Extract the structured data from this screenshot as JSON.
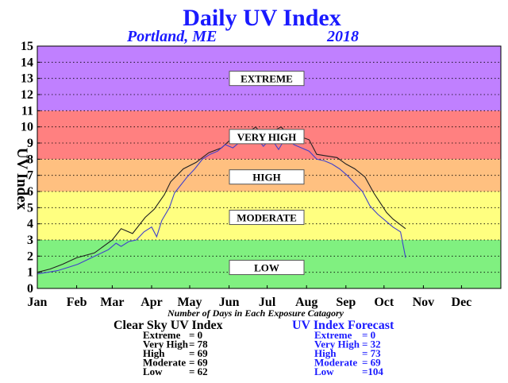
{
  "chart_data": {
    "type": "line",
    "title": "Daily UV Index",
    "subtitle_location": "Portland, ME",
    "subtitle_year": "2018",
    "ylabel": "UV Index",
    "ylim": [
      0,
      15
    ],
    "yticks": [
      "0",
      "1",
      "2",
      "3",
      "4",
      "5",
      "6",
      "7",
      "8",
      "9",
      "10",
      "11",
      "12",
      "13",
      "14",
      "15"
    ],
    "xlim": [
      0,
      365
    ],
    "month_ticks": [
      "Jan",
      "Feb",
      "Mar",
      "Apr",
      "May",
      "Jun",
      "Jul",
      "Aug",
      "Sep",
      "Oct",
      "Nov",
      "Dec"
    ],
    "month_starts": [
      0,
      31,
      59,
      90,
      120,
      151,
      181,
      212,
      243,
      273,
      304,
      334
    ],
    "grid": true,
    "bands": [
      {
        "name": "LOW",
        "from": 0,
        "to": 3,
        "color": "#80f080"
      },
      {
        "name": "MODERATE",
        "from": 3,
        "to": 6,
        "color": "#ffff80"
      },
      {
        "name": "HIGH",
        "from": 6,
        "to": 8,
        "color": "#ffc080"
      },
      {
        "name": "VERY HIGH",
        "from": 8,
        "to": 11,
        "color": "#ff8080"
      },
      {
        "name": "EXTREME",
        "from": 11,
        "to": 15,
        "color": "#c080ff"
      }
    ],
    "category_labels": [
      {
        "text": "EXTREME",
        "y": 13
      },
      {
        "text": "VERY HIGH",
        "y": 9.4
      },
      {
        "text": "HIGH",
        "y": 6.9
      },
      {
        "text": "MODERATE",
        "y": 4.4
      },
      {
        "text": "LOW",
        "y": 1.3
      }
    ],
    "series": [
      {
        "name": "Clear Sky UV Index",
        "color": "#202020",
        "points": [
          [
            0,
            1.0
          ],
          [
            10,
            1.2
          ],
          [
            20,
            1.5
          ],
          [
            31,
            1.9
          ],
          [
            45,
            2.2
          ],
          [
            59,
            3.0
          ],
          [
            66,
            3.7
          ],
          [
            75,
            3.4
          ],
          [
            85,
            4.4
          ],
          [
            92,
            4.9
          ],
          [
            100,
            5.8
          ],
          [
            105,
            6.6
          ],
          [
            115,
            7.4
          ],
          [
            125,
            7.8
          ],
          [
            135,
            8.4
          ],
          [
            145,
            8.7
          ],
          [
            152,
            9.2
          ],
          [
            158,
            9.5
          ],
          [
            165,
            9.6
          ],
          [
            172,
            10.0
          ],
          [
            178,
            9.4
          ],
          [
            185,
            9.7
          ],
          [
            192,
            10.0
          ],
          [
            200,
            9.3
          ],
          [
            207,
            9.4
          ],
          [
            214,
            9.2
          ],
          [
            220,
            8.3
          ],
          [
            228,
            8.2
          ],
          [
            236,
            8.1
          ],
          [
            243,
            7.7
          ],
          [
            250,
            7.4
          ],
          [
            258,
            6.9
          ],
          [
            265,
            5.9
          ],
          [
            270,
            5.3
          ],
          [
            275,
            4.7
          ],
          [
            280,
            4.3
          ],
          [
            285,
            4.0
          ],
          [
            290,
            3.7
          ]
        ]
      },
      {
        "name": "UV Index Forecast",
        "color": "#4040cc",
        "points": [
          [
            0,
            0.9
          ],
          [
            8,
            1.0
          ],
          [
            16,
            1.1
          ],
          [
            24,
            1.3
          ],
          [
            32,
            1.5
          ],
          [
            40,
            1.8
          ],
          [
            48,
            2.1
          ],
          [
            56,
            2.4
          ],
          [
            62,
            2.8
          ],
          [
            66,
            2.6
          ],
          [
            72,
            2.9
          ],
          [
            78,
            3.0
          ],
          [
            84,
            3.5
          ],
          [
            90,
            3.8
          ],
          [
            94,
            3.2
          ],
          [
            98,
            4.2
          ],
          [
            104,
            5.0
          ],
          [
            108,
            5.9
          ],
          [
            112,
            6.3
          ],
          [
            118,
            6.9
          ],
          [
            124,
            7.4
          ],
          [
            130,
            8.0
          ],
          [
            136,
            8.3
          ],
          [
            142,
            8.5
          ],
          [
            148,
            8.9
          ],
          [
            154,
            8.7
          ],
          [
            160,
            9.1
          ],
          [
            166,
            9.0
          ],
          [
            172,
            9.4
          ],
          [
            178,
            8.8
          ],
          [
            184,
            9.3
          ],
          [
            190,
            8.6
          ],
          [
            196,
            9.4
          ],
          [
            202,
            8.9
          ],
          [
            208,
            8.7
          ],
          [
            214,
            8.5
          ],
          [
            220,
            8.0
          ],
          [
            226,
            7.9
          ],
          [
            232,
            7.7
          ],
          [
            238,
            7.4
          ],
          [
            244,
            7.0
          ],
          [
            250,
            6.5
          ],
          [
            256,
            6.0
          ],
          [
            262,
            5.1
          ],
          [
            268,
            4.6
          ],
          [
            274,
            4.2
          ],
          [
            280,
            3.8
          ],
          [
            286,
            3.5
          ],
          [
            290,
            1.9
          ]
        ]
      }
    ],
    "xcaption": "Number of Days in Each Exposure Catagory",
    "summary": {
      "clear_sky": {
        "title": "Clear Sky UV Index",
        "rows": [
          {
            "label": "Extreme",
            "value": "= 0"
          },
          {
            "label": "Very High",
            "value": "= 78"
          },
          {
            "label": "High",
            "value": "= 69"
          },
          {
            "label": "Moderate",
            "value": "= 69"
          },
          {
            "label": "Low",
            "value": "= 62"
          }
        ]
      },
      "forecast": {
        "title": "UV Index Forecast",
        "rows": [
          {
            "label": "Extreme",
            "value": "= 0"
          },
          {
            "label": "Very High",
            "value": "= 32"
          },
          {
            "label": "High",
            "value": "= 73"
          },
          {
            "label": "Moderate",
            "value": "= 69"
          },
          {
            "label": "Low",
            "value": "=104"
          }
        ]
      }
    }
  }
}
